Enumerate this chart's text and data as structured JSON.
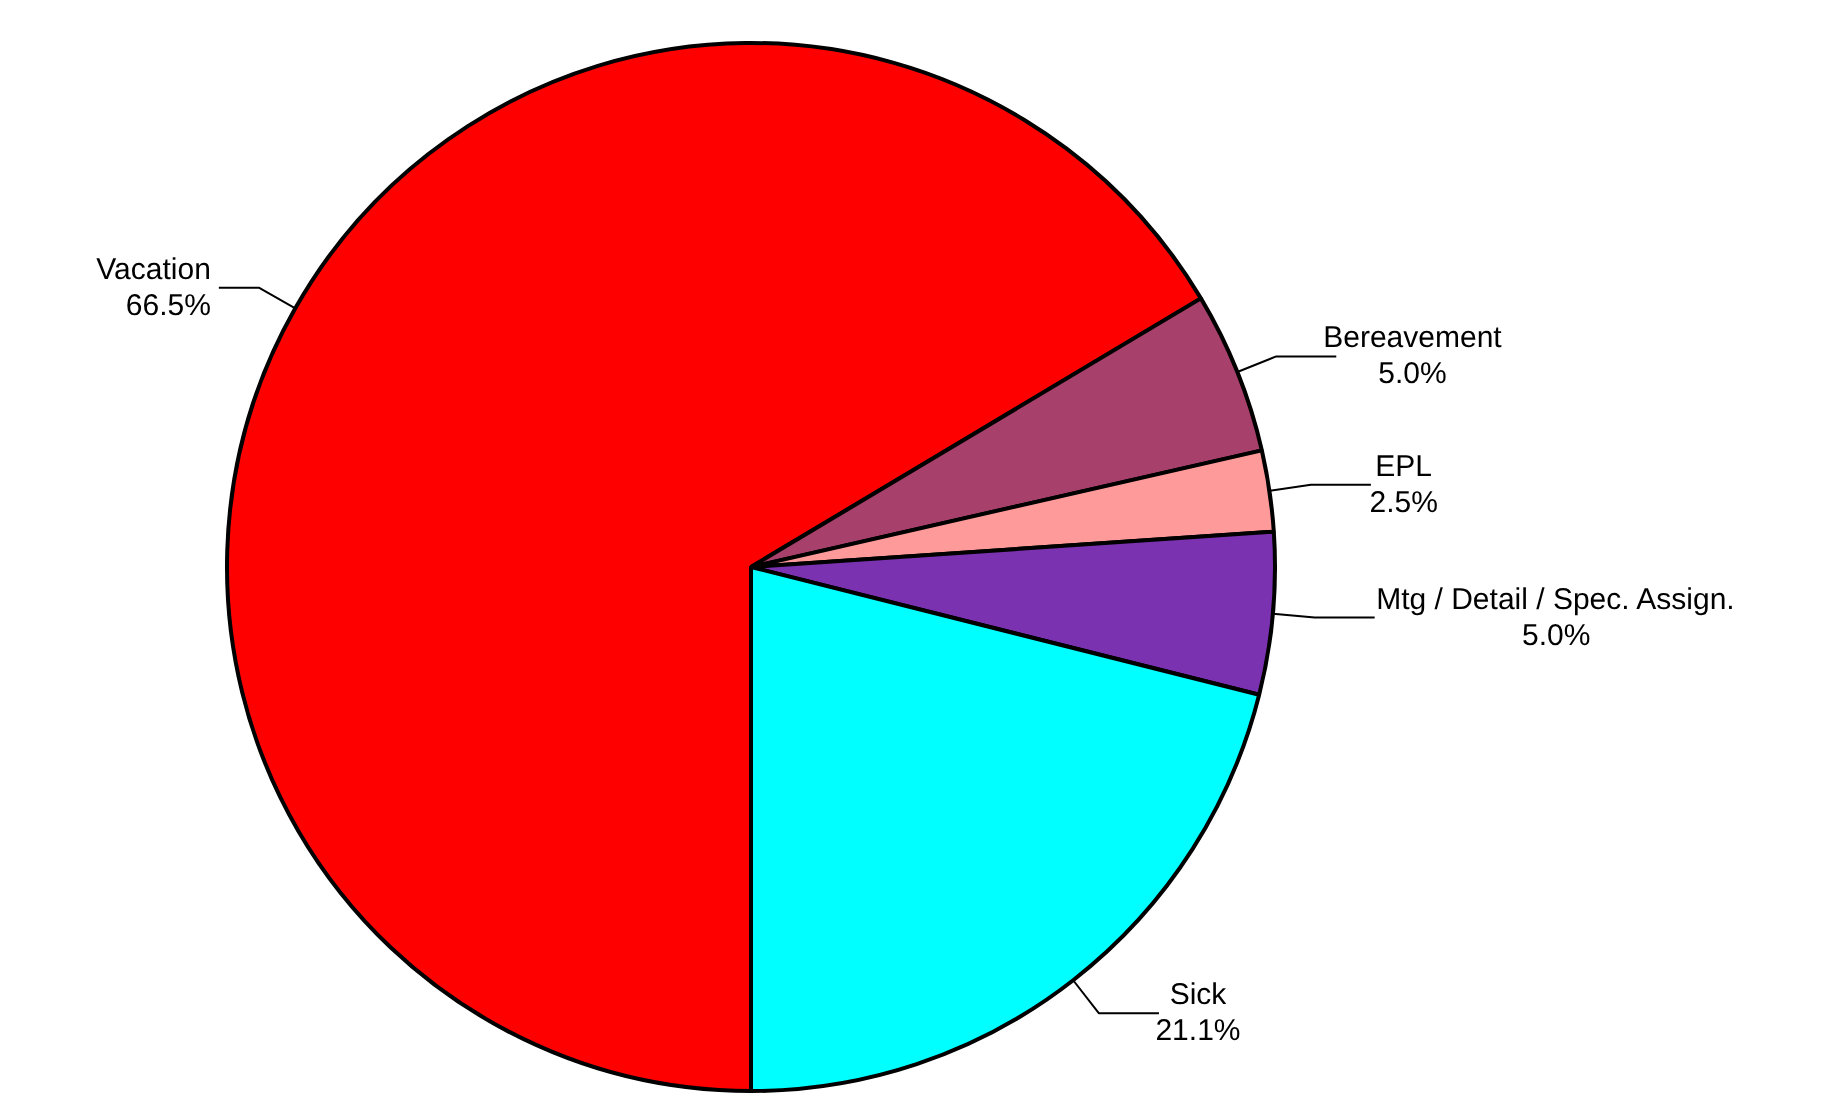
{
  "chart_data": {
    "type": "pie",
    "categories": [
      "Vacation",
      "Bereavement",
      "EPL",
      "Mtg / Detail / Spec. Assign.",
      "Sick"
    ],
    "values": [
      66.5,
      5.0,
      2.5,
      5.0,
      21.1
    ],
    "value_labels": [
      "66.5%",
      "5.0%",
      "2.5%",
      "5.0%",
      "21.1%"
    ],
    "colors": [
      "#ff0000",
      "#a8406c",
      "#ff9a9a",
      "#7a32b0",
      "#00ffff"
    ]
  }
}
